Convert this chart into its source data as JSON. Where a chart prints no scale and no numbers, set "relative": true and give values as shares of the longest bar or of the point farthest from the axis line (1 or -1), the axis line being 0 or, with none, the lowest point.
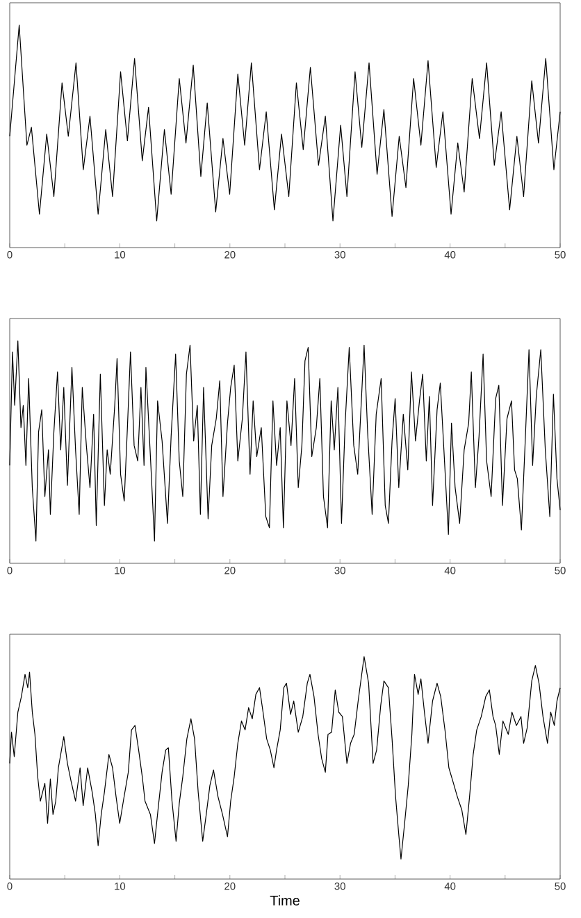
{
  "chart_data": [
    {
      "type": "line",
      "relative": true,
      "color": "#000000",
      "xlim": [
        0,
        50
      ],
      "xticks": [
        0,
        {
          "value": 5,
          "label": null
        },
        10,
        {
          "value": 15,
          "label": null
        },
        20,
        {
          "value": 25,
          "label": null
        },
        30,
        {
          "value": 35,
          "label": null
        },
        40,
        {
          "value": 45,
          "label": null
        },
        50
      ],
      "x": [
        0,
        0.86,
        1.56,
        1.97,
        2.7,
        3.36,
        4.01,
        4.75,
        5.32,
        6.02,
        6.68,
        7.29,
        8.03,
        8.72,
        9.34,
        10.07,
        10.69,
        11.34,
        12.04,
        12.61,
        13.35,
        14.05,
        14.66,
        15.4,
        16.01,
        16.67,
        17.36,
        17.94,
        18.71,
        19.37,
        19.98,
        20.72,
        21.34,
        21.95,
        22.69,
        23.3,
        24.04,
        24.69,
        25.35,
        26.04,
        26.66,
        27.31,
        28.05,
        28.67,
        29.36,
        30.06,
        30.63,
        31.37,
        31.98,
        32.64,
        33.37,
        33.99,
        34.73,
        35.38,
        35.99,
        36.69,
        37.35,
        38.0,
        38.74,
        39.35,
        40.09,
        40.7,
        41.28,
        42.01,
        42.67,
        43.32,
        44.02,
        44.64,
        45.41,
        46.07,
        46.68,
        47.42,
        48.03,
        48.69,
        49.43,
        50
      ],
      "values": [
        0.5,
        1.0,
        0.46,
        0.54,
        0.15,
        0.51,
        0.23,
        0.74,
        0.5,
        0.83,
        0.35,
        0.59,
        0.15,
        0.53,
        0.23,
        0.79,
        0.48,
        0.85,
        0.39,
        0.63,
        0.12,
        0.53,
        0.24,
        0.76,
        0.47,
        0.82,
        0.32,
        0.65,
        0.16,
        0.49,
        0.24,
        0.78,
        0.46,
        0.83,
        0.35,
        0.61,
        0.17,
        0.51,
        0.23,
        0.74,
        0.44,
        0.81,
        0.37,
        0.59,
        0.12,
        0.55,
        0.23,
        0.79,
        0.45,
        0.83,
        0.33,
        0.62,
        0.14,
        0.5,
        0.27,
        0.76,
        0.46,
        0.84,
        0.36,
        0.61,
        0.15,
        0.47,
        0.25,
        0.76,
        0.49,
        0.83,
        0.37,
        0.61,
        0.17,
        0.5,
        0.23,
        0.75,
        0.47,
        0.85,
        0.35,
        0.61
      ]
    },
    {
      "type": "line",
      "relative": true,
      "color": "#000000",
      "xlim": [
        0,
        50
      ],
      "xticks": [
        0,
        {
          "value": 5,
          "label": null
        },
        10,
        {
          "value": 15,
          "label": null
        },
        20,
        {
          "value": 25,
          "label": null
        },
        30,
        {
          "value": 35,
          "label": null
        },
        40,
        {
          "value": 45,
          "label": null
        },
        50
      ],
      "x": [
        0.0,
        0.25,
        0.45,
        0.74,
        1.02,
        1.23,
        1.47,
        1.72,
        2.05,
        2.38,
        2.62,
        2.91,
        3.19,
        3.52,
        3.69,
        4.01,
        4.34,
        4.63,
        4.91,
        5.24,
        5.65,
        5.98,
        6.31,
        6.59,
        6.96,
        7.29,
        7.62,
        7.86,
        8.23,
        8.6,
        8.85,
        9.13,
        9.54,
        9.75,
        10.07,
        10.4,
        10.69,
        10.97,
        11.3,
        11.63,
        11.92,
        12.2,
        12.37,
        12.82,
        13.15,
        13.43,
        13.84,
        14.33,
        14.66,
        15.07,
        15.4,
        15.72,
        16.05,
        16.38,
        16.71,
        17.04,
        17.32,
        17.61,
        18.02,
        18.35,
        18.76,
        19.08,
        19.37,
        19.78,
        20.07,
        20.39,
        20.72,
        21.13,
        21.46,
        21.83,
        22.11,
        22.44,
        22.85,
        23.26,
        23.59,
        23.91,
        24.24,
        24.57,
        24.86,
        25.18,
        25.55,
        25.88,
        26.21,
        26.54,
        26.82,
        27.11,
        27.44,
        27.85,
        28.17,
        28.5,
        28.87,
        29.2,
        29.48,
        29.81,
        30.14,
        30.47,
        30.84,
        31.25,
        31.61,
        32.19,
        32.51,
        32.92,
        33.29,
        33.74,
        34.11,
        34.4,
        34.73,
        35.01,
        35.34,
        35.75,
        36.16,
        36.49,
        36.86,
        37.22,
        37.51,
        37.84,
        38.12,
        38.41,
        38.82,
        39.11,
        39.44,
        39.85,
        40.13,
        40.46,
        40.87,
        41.28,
        41.69,
        41.93,
        42.3,
        42.63,
        43.0,
        43.32,
        43.73,
        44.14,
        44.43,
        44.76,
        45.17,
        45.58,
        45.86,
        46.11,
        46.48,
        46.81,
        47.17,
        47.5,
        47.83,
        48.24,
        48.65,
        49.06,
        49.39,
        49.71,
        50.0
      ],
      "values": [
        0.44,
        0.95,
        0.71,
        1.0,
        0.61,
        0.71,
        0.44,
        0.83,
        0.34,
        0.1,
        0.59,
        0.69,
        0.3,
        0.51,
        0.22,
        0.59,
        0.86,
        0.51,
        0.79,
        0.35,
        0.88,
        0.51,
        0.22,
        0.79,
        0.53,
        0.34,
        0.67,
        0.17,
        0.85,
        0.26,
        0.51,
        0.4,
        0.71,
        0.92,
        0.4,
        0.28,
        0.61,
        0.95,
        0.53,
        0.46,
        0.79,
        0.44,
        0.88,
        0.44,
        0.1,
        0.73,
        0.55,
        0.18,
        0.57,
        0.94,
        0.46,
        0.3,
        0.85,
        0.98,
        0.55,
        0.71,
        0.22,
        0.79,
        0.2,
        0.53,
        0.65,
        0.82,
        0.3,
        0.63,
        0.79,
        0.89,
        0.46,
        0.65,
        0.95,
        0.4,
        0.73,
        0.48,
        0.61,
        0.21,
        0.16,
        0.73,
        0.44,
        0.61,
        0.16,
        0.73,
        0.53,
        0.83,
        0.34,
        0.53,
        0.91,
        0.97,
        0.48,
        0.61,
        0.83,
        0.3,
        0.16,
        0.73,
        0.51,
        0.79,
        0.18,
        0.63,
        0.97,
        0.53,
        0.4,
        0.98,
        0.59,
        0.22,
        0.67,
        0.83,
        0.26,
        0.18,
        0.55,
        0.74,
        0.34,
        0.67,
        0.42,
        0.86,
        0.55,
        0.73,
        0.85,
        0.46,
        0.75,
        0.26,
        0.69,
        0.81,
        0.51,
        0.13,
        0.63,
        0.34,
        0.18,
        0.51,
        0.63,
        0.86,
        0.34,
        0.57,
        0.94,
        0.46,
        0.3,
        0.74,
        0.8,
        0.26,
        0.65,
        0.73,
        0.42,
        0.38,
        0.15,
        0.53,
        0.96,
        0.44,
        0.75,
        0.96,
        0.51,
        0.21,
        0.76,
        0.38,
        0.24
      ]
    },
    {
      "type": "line",
      "relative": true,
      "color": "#000000",
      "xlabel": "Time",
      "xlim": [
        0,
        50
      ],
      "xticks": [
        0,
        {
          "value": 5,
          "label": null
        },
        10,
        {
          "value": 15,
          "label": null
        },
        20,
        {
          "value": 25,
          "label": null
        },
        30,
        {
          "value": 35,
          "label": null
        },
        40,
        {
          "value": 45,
          "label": null
        },
        50
      ],
      "x": [
        0.0,
        0.16,
        0.41,
        0.74,
        1.06,
        1.39,
        1.64,
        1.8,
        2.05,
        2.29,
        2.54,
        2.78,
        3.19,
        3.44,
        3.69,
        3.93,
        4.18,
        4.42,
        4.91,
        5.24,
        5.57,
        5.98,
        6.39,
        6.67,
        7.08,
        7.49,
        7.78,
        8.03,
        8.31,
        8.6,
        9.01,
        9.34,
        9.66,
        9.99,
        10.32,
        10.77,
        11.06,
        11.38,
        11.71,
        12.04,
        12.29,
        12.78,
        13.15,
        13.51,
        13.84,
        14.17,
        14.41,
        14.74,
        15.11,
        15.4,
        15.72,
        16.09,
        16.46,
        16.79,
        17.12,
        17.53,
        17.85,
        18.18,
        18.51,
        18.92,
        19.33,
        19.78,
        20.07,
        20.39,
        20.72,
        21.05,
        21.38,
        21.7,
        22.03,
        22.36,
        22.69,
        23.01,
        23.34,
        23.67,
        24.0,
        24.24,
        24.57,
        24.9,
        25.14,
        25.51,
        25.8,
        26.21,
        26.62,
        27.03,
        27.27,
        27.64,
        28.01,
        28.34,
        28.67,
        28.91,
        29.24,
        29.57,
        29.89,
        30.22,
        30.63,
        30.96,
        31.29,
        31.65,
        32.19,
        32.6,
        33.01,
        33.33,
        33.7,
        33.99,
        34.4,
        34.73,
        35.05,
        35.34,
        35.54,
        35.87,
        36.2,
        36.53,
        36.77,
        37.1,
        37.35,
        37.67,
        38.0,
        38.41,
        38.82,
        39.15,
        39.56,
        39.89,
        40.25,
        40.66,
        41.07,
        41.44,
        41.77,
        42.1,
        42.42,
        42.83,
        43.24,
        43.57,
        43.9,
        44.14,
        44.47,
        44.8,
        45.29,
        45.62,
        46.03,
        46.44,
        46.68,
        47.01,
        47.42,
        47.75,
        48.08,
        48.44,
        48.85,
        49.14,
        49.47,
        49.71,
        50.0
      ],
      "values": [
        0.52,
        0.66,
        0.55,
        0.75,
        0.82,
        0.92,
        0.86,
        0.93,
        0.75,
        0.65,
        0.46,
        0.35,
        0.43,
        0.25,
        0.45,
        0.29,
        0.35,
        0.5,
        0.64,
        0.52,
        0.44,
        0.35,
        0.5,
        0.33,
        0.5,
        0.39,
        0.29,
        0.15,
        0.29,
        0.39,
        0.56,
        0.5,
        0.37,
        0.25,
        0.35,
        0.48,
        0.67,
        0.69,
        0.58,
        0.46,
        0.35,
        0.29,
        0.16,
        0.33,
        0.48,
        0.58,
        0.59,
        0.35,
        0.17,
        0.34,
        0.46,
        0.63,
        0.72,
        0.63,
        0.39,
        0.17,
        0.29,
        0.42,
        0.49,
        0.37,
        0.29,
        0.19,
        0.35,
        0.46,
        0.61,
        0.71,
        0.67,
        0.77,
        0.72,
        0.83,
        0.86,
        0.75,
        0.63,
        0.58,
        0.5,
        0.58,
        0.67,
        0.86,
        0.88,
        0.74,
        0.8,
        0.66,
        0.73,
        0.88,
        0.92,
        0.82,
        0.65,
        0.54,
        0.48,
        0.65,
        0.66,
        0.85,
        0.75,
        0.73,
        0.52,
        0.61,
        0.65,
        0.8,
        1.0,
        0.88,
        0.52,
        0.58,
        0.78,
        0.89,
        0.86,
        0.63,
        0.37,
        0.2,
        0.09,
        0.25,
        0.42,
        0.65,
        0.92,
        0.83,
        0.9,
        0.75,
        0.61,
        0.8,
        0.88,
        0.82,
        0.66,
        0.5,
        0.44,
        0.37,
        0.31,
        0.2,
        0.37,
        0.56,
        0.67,
        0.73,
        0.82,
        0.85,
        0.73,
        0.69,
        0.56,
        0.71,
        0.65,
        0.75,
        0.69,
        0.73,
        0.61,
        0.68,
        0.89,
        0.96,
        0.88,
        0.73,
        0.61,
        0.75,
        0.69,
        0.8,
        0.86
      ]
    }
  ]
}
